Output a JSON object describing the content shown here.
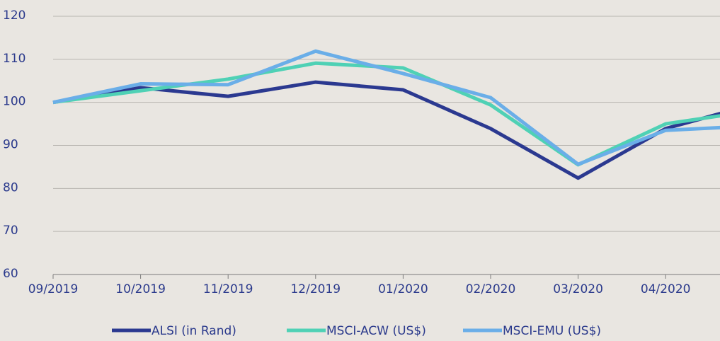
{
  "chart_data": {
    "type": "line",
    "categories": [
      "09/2019",
      "10/2019",
      "11/2019",
      "12/2019",
      "01/2020",
      "02/2020",
      "03/2020",
      "04/2020",
      null
    ],
    "series": [
      {
        "name": "ALSI (in Rand)",
        "color": "#2b3990",
        "values": [
          100,
          103.4,
          101.4,
          104.7,
          102.9,
          93.9,
          82.4,
          93.9,
          99.5
        ]
      },
      {
        "name": "MSCI-ACW (US$)",
        "color": "#4fd1b5",
        "values": [
          100,
          102.7,
          105.4,
          109.1,
          108,
          99.4,
          85.5,
          95,
          98
        ]
      },
      {
        "name": "MSCI-EMU (US$)",
        "color": "#6aaee8",
        "values": [
          100,
          104.3,
          104.1,
          111.9,
          106.7,
          101.1,
          85.6,
          93.5,
          94.5
        ]
      }
    ],
    "ylim": [
      60,
      120
    ],
    "yticks": [
      60,
      70,
      80,
      90,
      100,
      110,
      120
    ],
    "grid": true,
    "legend": "bottom"
  }
}
